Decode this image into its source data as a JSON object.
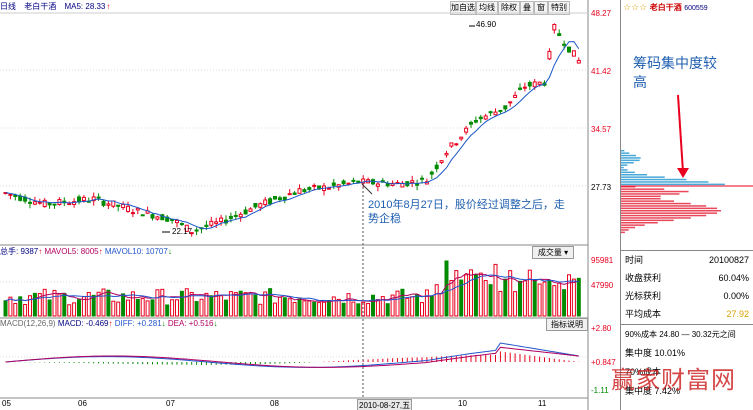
{
  "header": {
    "period": "日线",
    "stock_name": "老白干酒",
    "ma5_label": "MA5: 28.33",
    "up_arrow": "↑",
    "toolbar": [
      "加自选",
      "均线",
      "除权",
      "叠",
      "窗",
      "特别"
    ]
  },
  "price_axis": [
    "48.27",
    "41.42",
    "34.57",
    "27.73"
  ],
  "price_annotations": {
    "high": "46.90",
    "low": "22.17"
  },
  "annotation": "2010年8月27日，股价经过调整之后，走势企稳",
  "volume": {
    "label_total": "总手: 9387",
    "mavol5": "MAVOL5: 8005",
    "mavol10": "MAVOL10: 10707",
    "button": "成交量",
    "axis": [
      "95981",
      "47990"
    ]
  },
  "macd": {
    "label": "MACD(12,26,9)",
    "macd_val": "MACD: -0.469",
    "diff": "DIFF: +0.281",
    "dea": "DEA: +0.516",
    "button": "指标说明",
    "axis": [
      "+2.80",
      "+0.847",
      "-1.11"
    ]
  },
  "x_axis": [
    "05",
    "06",
    "07",
    "08",
    "2010-08-27,五",
    "10",
    "11"
  ],
  "side": {
    "stars": "☆☆☆",
    "stock_name": "老白干酒",
    "code": "600559",
    "overlay_text": "筹码集中度较高",
    "date_label": "时间",
    "date_value": "20100827",
    "profit_label": "收盘获利",
    "profit_value": "60.04%",
    "cursor_label": "光标获利",
    "cursor_value": "0.00%",
    "avg_label": "平均成本",
    "avg_value": "27.92",
    "cost90": "90%成本 24.80 — 30.32元之间",
    "conc90": "集中度 10.01%",
    "cost70": "70%成本",
    "conc70": "集中度 7.42%"
  },
  "watermark": "赢家财富网",
  "colors": {
    "up": "#e8001e",
    "down": "#008a00",
    "ma": "#1a56c8",
    "chip_red": "#e8485a",
    "chip_blue": "#48a8d8",
    "annotation": "#1f5fb0"
  }
}
